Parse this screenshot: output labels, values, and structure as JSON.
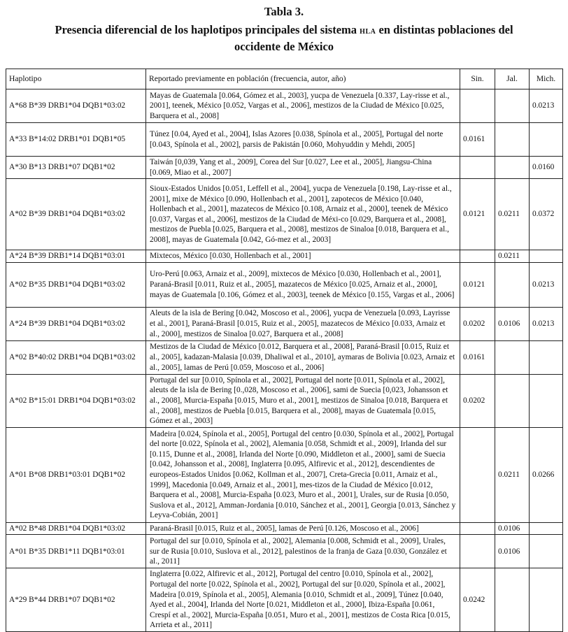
{
  "title": {
    "label": "Tabla 3.",
    "line1_pre": "Presencia diferencial de los haplotipos principales del sistema ",
    "line1_sc": "hla",
    "line1_post": " en distintas poblaciones del",
    "line2": "occidente de México"
  },
  "table": {
    "headers": [
      "Haplotipo",
      "Reportado previamente en población (frecuencia, autor, año)",
      "Sin.",
      "Jal.",
      "Mich."
    ],
    "rows": [
      {
        "haplotipo": "A*68 B*39 DRB1*04 DQB1*03:02",
        "ref": "Mayas de Guatemala [0.064, Gómez et al., 2003], yucpa de Venezuela [0.337, Lay-risse et al., 2001], teenek, México [0.052, Vargas et al., 2006], mestizos de la Ciudad de México [0.025, Barquera et al., 2008]",
        "sin": "",
        "jal": "",
        "mich": "0.0213"
      },
      {
        "haplotipo": "A*33 B*14:02 DRB1*01 DQB1*05",
        "ref": "Túnez [0.04, Ayed et al., 2004], Islas Azores [0.038, Spínola et al., 2005], Portugal del norte [0.043, Spínola et al., 2002], parsis de Pakistán [0.060, Mohyuddin y Mehdi, 2005]",
        "sin": "0.0161",
        "jal": "",
        "mich": ""
      },
      {
        "haplotipo": "A*30 B*13 DRB1*07 DQB1*02",
        "ref": "Taiwán [0,039, Yang et al., 2009], Corea del Sur [0.027, Lee et al., 2005], Jiangsu-China [0.069, Miao et al., 2007]",
        "sin": "",
        "jal": "",
        "mich": "0.0160"
      },
      {
        "haplotipo": "A*02 B*39 DRB1*04 DQB1*03:02",
        "ref": "Sioux-Estados Unidos [0.051, Leffell et al., 2004], yucpa de Venezuela [0.198, Lay-risse et al., 2001], mixe de México [0.090, Hollenbach et al., 2001], zapotecos de México [0.040, Hollenbach et al., 2001], mazatecos de México [0.108, Arnaiz et al., 2000], teenek de México [0.037, Vargas et al., 2006], mestizos de la Ciudad de Méxi-co [0.029, Barquera et al., 2008], mestizos de Puebla [0.025, Barquera et al., 2008], mestizos de Sinaloa [0.018, Barquera et al., 2008], mayas de Guatemala [0.042, Gó-mez et al., 2003]",
        "sin": "0.0121",
        "jal": "0.0211",
        "mich": "0.0372"
      },
      {
        "haplotipo": "A*24 B*39 DRB1*14 DQB1*03:01",
        "ref": "Mixtecos, México [0.030, Hollenbach et al., 2001]",
        "sin": "",
        "jal": "0.0211",
        "mich": ""
      },
      {
        "haplotipo": "A*02 B*35 DRB1*04 DQB1*03:02",
        "ref": "Uro-Perú [0.063, Arnaiz et al., 2009], mixtecos de México [0.030, Hollenbach et al., 2001], Paraná-Brasil [0.011, Ruiz et al., 2005], mazatecos de México [0.025, Arnaiz et al., 2000], mayas de Guatemala [0.106, Gómez et al., 2003], teenek de México [0.155, Vargas et al., 2006]",
        "sin": "0.0121",
        "jal": "",
        "mich": "0.0213"
      },
      {
        "haplotipo": "A*24 B*39 DRB1*04 DQB1*03:02",
        "ref": "Aleuts de la isla de Bering [0.042, Moscoso et al., 2006], yucpa de Venezuela [0.093, Layrisse et al., 2001], Paraná-Brasil [0.015, Ruiz et al., 2005], mazatecos de México [0.033, Arnaiz et al., 2000], mestizos de Sinaloa [0.027, Barquera et al., 2008]",
        "sin": "0.0202",
        "jal": "0.0106",
        "mich": "0.0213"
      },
      {
        "haplotipo": "A*02 B*40:02 DRB1*04 DQB1*03:02",
        "ref": "Mestizos de la Ciudad de México [0.012, Barquera et al., 2008], Paraná-Brasil [0.015, Ruiz et al., 2005], kadazan-Malasia [0.039, Dhaliwal et al., 2010], aymaras de Bolivia [0.023, Arnaiz et al., 2005], lamas de Perú [0.059, Moscoso et al., 2006]",
        "sin": "0.0161",
        "jal": "",
        "mich": ""
      },
      {
        "haplotipo": "A*02 B*15:01 DRB1*04 DQB1*03:02",
        "ref": "Portugal del sur [0.010, Spínola et al., 2002], Portugal del norte [0.011, Spínola et al., 2002], aleuts de la isla de Bering [0.,028, Moscoso et al., 2006], sami de Suecia [0,023, Johansson et al., 2008], Murcia-España [0.015, Muro et al., 2001], mestizos de Sinaloa [0.018, Barquera et al., 2008], mestizos de Puebla [0.015, Barquera et al., 2008], mayas de Guatemala [0.015, Gómez et al., 2003]",
        "sin": "0.0202",
        "jal": "",
        "mich": ""
      },
      {
        "haplotipo": "A*01 B*08 DRB1*03:01 DQB1*02",
        "ref": "Madeira [0.024, Spínola et al., 2005], Portugal del centro [0.030, Spínola et al., 2002], Portugal del norte [0.022, Spínola et al., 2002], Alemania [0.058, Schmidt et al., 2009], Irlanda del sur [0.115, Dunne et al., 2008], Irlanda del Norte [0.090, Middleton et al., 2000], sami de Suecia [0.042, Johansson et al., 2008], Inglaterra [0.095, Alfirevic et al., 2012], descendientes de europeos-Estados Unidos [0.062, Kollman et al., 2007], Creta-Grecia [0.011, Arnaiz et al., 1999], Macedonia [0.049, Arnaiz et al., 2001], mes-tizos de la Ciudad de México [0.012, Barquera et al., 2008], Murcia-España [0.023, Muro et al., 2001], Urales, sur de Rusia [0.050, Suslova et al., 2012], Amman-Jordania [0.010, Sánchez et al., 2001], Georgia [0.013, Sánchez y Leyva-Cobián, 2001]",
        "sin": "",
        "jal": "0.0211",
        "mich": "0.0266"
      },
      {
        "haplotipo": "A*02 B*48 DRB1*04 DQB1*03:02",
        "ref": "Paraná-Brasil [0.015, Ruiz et al., 2005], lamas de Perú [0.126, Moscoso et al., 2006]",
        "sin": "",
        "jal": "0.0106",
        "mich": ""
      },
      {
        "haplotipo": "A*01 B*35 DRB1*11 DQB1*03:01",
        "ref": "Portugal del sur [0.010, Spínola et al., 2002], Alemania [0.008, Schmidt et al., 2009], Urales, sur de Rusia [0.010, Suslova et al., 2012], palestinos de la franja de Gaza [0.030, González et al., 2011]",
        "sin": "",
        "jal": "0.0106",
        "mich": ""
      },
      {
        "haplotipo": "A*29 B*44 DRB1*07 DQB1*02",
        "ref": "Inglaterra [0.022, Alfirevic et al., 2012], Portugal del centro [0.010, Spínola et al., 2002], Portugal del norte [0.022, Spínola et al., 2002], Portugal del sur [0.020, Spínola et al., 2002], Madeira [0.019, Spínola et al., 2005], Alemania [0.010, Schmidt et al., 2009], Túnez [0.040, Ayed et al., 2004], Irlanda del Norte [0.021, Middleton et al., 2000], Ibiza-España [0.061, Crespí et al., 2002], Murcia-España [0.051, Muro et al., 2001], mestizos de Costa Rica [0.015, Arrieta et al., 2011]",
        "sin": "0.0242",
        "jal": "",
        "mich": ""
      }
    ]
  }
}
